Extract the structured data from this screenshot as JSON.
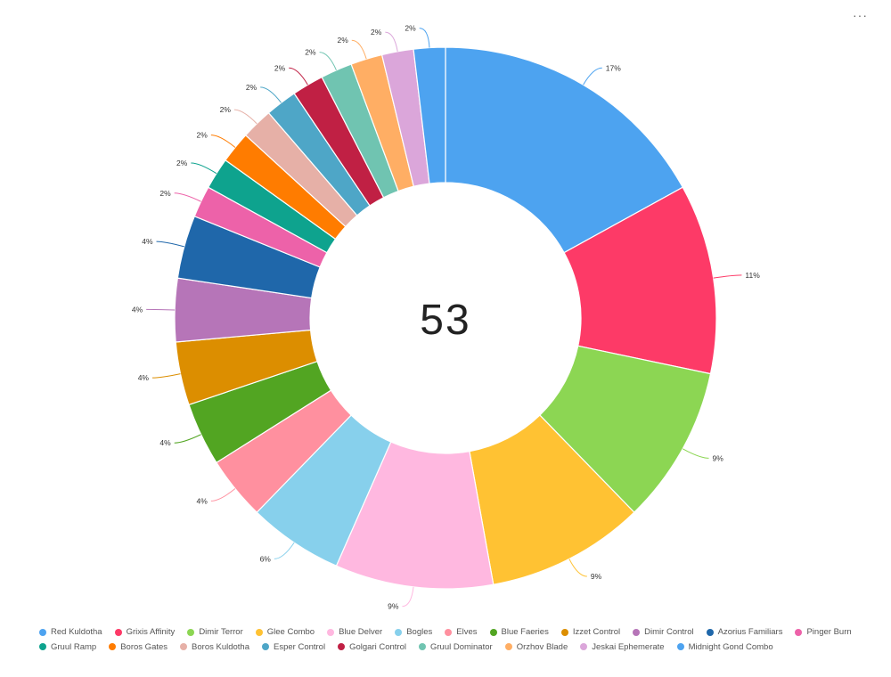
{
  "menu": {
    "label": "···"
  },
  "chart_data": {
    "type": "pie",
    "donut": true,
    "center_text": "53",
    "slices": [
      {
        "name": "Red Kuldotha",
        "value": 9,
        "pct_label": "17%",
        "color": "#4da3f0"
      },
      {
        "name": "Grixis Affinity",
        "value": 6,
        "pct_label": "11%",
        "color": "#fd3a67"
      },
      {
        "name": "Dimir Terror",
        "value": 5,
        "pct_label": "9%",
        "color": "#8cd653"
      },
      {
        "name": "Glee Combo",
        "value": 5,
        "pct_label": "9%",
        "color": "#ffc233"
      },
      {
        "name": "Blue Delver",
        "value": 5,
        "pct_label": "9%",
        "color": "#ffb8e0"
      },
      {
        "name": "Bogles",
        "value": 3,
        "pct_label": "6%",
        "color": "#87d0ec"
      },
      {
        "name": "Elves",
        "value": 2,
        "pct_label": "4%",
        "color": "#ff909f"
      },
      {
        "name": "Blue Faeries",
        "value": 2,
        "pct_label": "4%",
        "color": "#52a522"
      },
      {
        "name": "Izzet Control",
        "value": 2,
        "pct_label": "4%",
        "color": "#dc8e00"
      },
      {
        "name": "Dimir Control",
        "value": 2,
        "pct_label": "4%",
        "color": "#b675b8"
      },
      {
        "name": "Azorius Familiars",
        "value": 2,
        "pct_label": "4%",
        "color": "#1f67aa"
      },
      {
        "name": "Pinger Burn",
        "value": 1,
        "pct_label": "2%",
        "color": "#ed62a9"
      },
      {
        "name": "Gruul Ramp",
        "value": 1,
        "pct_label": "2%",
        "color": "#0ea38e"
      },
      {
        "name": "Boros Gates",
        "value": 1,
        "pct_label": "2%",
        "color": "#ff7c00"
      },
      {
        "name": "Boros Kuldotha",
        "value": 1,
        "pct_label": "2%",
        "color": "#e6b0a7"
      },
      {
        "name": "Esper Control",
        "value": 1,
        "pct_label": "2%",
        "color": "#4ea6c7"
      },
      {
        "name": "Golgari Control",
        "value": 1,
        "pct_label": "2%",
        "color": "#c02044"
      },
      {
        "name": "Gruul Dominator",
        "value": 1,
        "pct_label": "2%",
        "color": "#70c4b1"
      },
      {
        "name": "Orzhov Blade",
        "value": 1,
        "pct_label": "2%",
        "color": "#ffae64"
      },
      {
        "name": "Jeskai Ephemerate",
        "value": 1,
        "pct_label": "2%",
        "color": "#dba6da"
      },
      {
        "name": "Midnight Gond Combo",
        "value": 1,
        "pct_label": "2%",
        "color": "#4da3f0"
      }
    ],
    "legend_position": "bottom"
  }
}
